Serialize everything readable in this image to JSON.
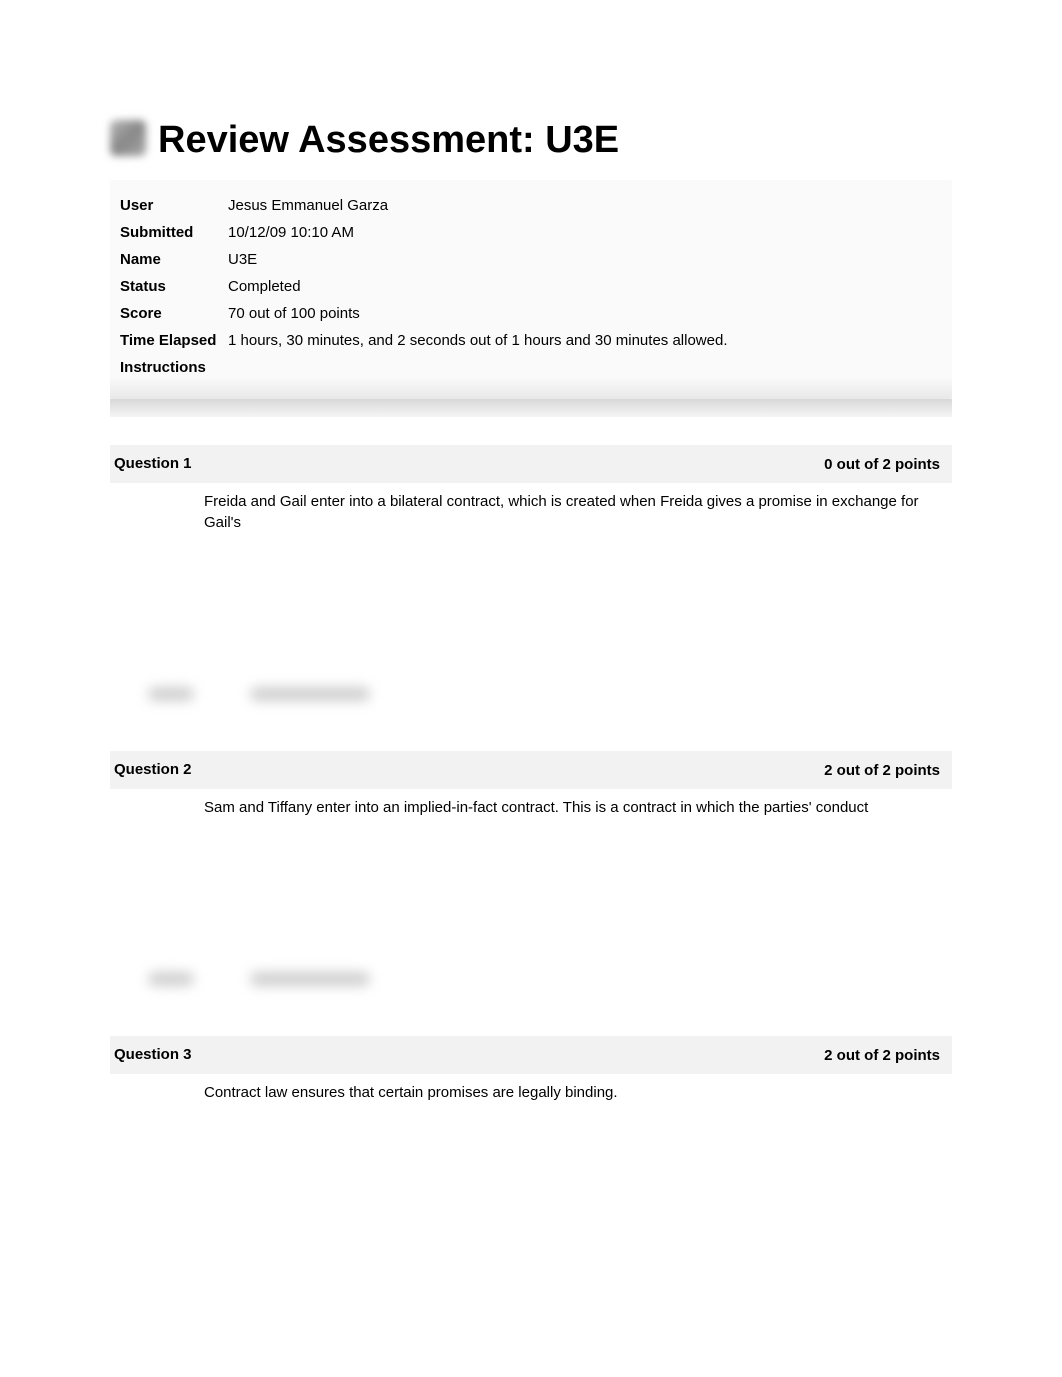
{
  "header": {
    "title": "Review Assessment: U3E"
  },
  "info": {
    "user": {
      "label": "User",
      "value": "Jesus Emmanuel Garza"
    },
    "submitted": {
      "label": "Submitted",
      "value": "10/12/09 10:10 AM"
    },
    "name": {
      "label": "Name",
      "value": "U3E"
    },
    "status": {
      "label": "Status",
      "value": "Completed"
    },
    "score": {
      "label": "Score",
      "value": "70 out of 100 points"
    },
    "time_elapsed": {
      "label": "Time Elapsed",
      "value": "1 hours, 30 minutes, and 2 seconds out of 1 hours and 30 minutes allowed."
    },
    "instructions": {
      "label": "Instructions",
      "value": ""
    }
  },
  "questions": [
    {
      "label": "Question 1",
      "points": "0 out of 2 points",
      "text": "Freida and Gail enter into a bilateral contract, which is created when Freida gives a promise in exchange for Gail's"
    },
    {
      "label": "Question 2",
      "points": "2 out of 2 points",
      "text": "Sam and Tiffany enter into an implied-in-fact contract. This is a contract in which the parties' conduct"
    },
    {
      "label": "Question 3",
      "points": "2 out of 2 points",
      "text": "Contract law ensures that certain promises are legally binding."
    }
  ],
  "colors": {
    "background": "#ffffff",
    "text": "#000000",
    "question_header_bg": "#f2f2f2",
    "info_bg": "#fafafa",
    "blur_gray": "#cfcfcf"
  },
  "typography": {
    "title_fontsize": 38,
    "body_fontsize": 15,
    "font_family": "Arial"
  }
}
